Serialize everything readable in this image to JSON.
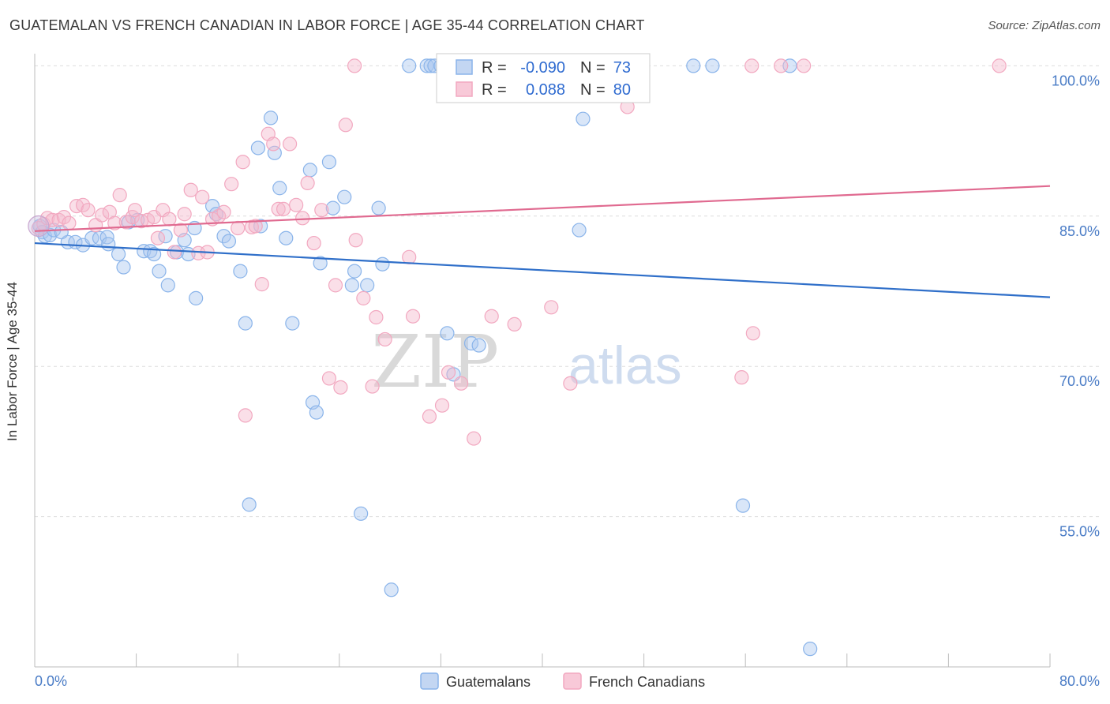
{
  "title": "GUATEMALAN VS FRENCH CANADIAN IN LABOR FORCE | AGE 35-44 CORRELATION CHART",
  "source": "Source: ZipAtlas.com",
  "watermark": {
    "part1": "ZIP",
    "part2": "atlas"
  },
  "chart_data": {
    "type": "scatter",
    "ylabel": "In Labor Force | Age 35-44",
    "xlim": [
      0,
      80
    ],
    "ylim": [
      40,
      102
    ],
    "x_ticks": [
      "0.0%",
      "80.0%"
    ],
    "y_ticks": [
      {
        "value": 100,
        "label": "100.0%"
      },
      {
        "value": 85,
        "label": "85.0%"
      },
      {
        "value": 70,
        "label": "70.0%"
      },
      {
        "value": 55,
        "label": "55.0%"
      }
    ],
    "legend": {
      "entries": [
        {
          "r_label": "R =",
          "r": "-0.090",
          "n_label": "N =",
          "n": "73"
        },
        {
          "r_label": "R =",
          "r": "0.088",
          "n_label": "N =",
          "n": "80"
        }
      ]
    },
    "series": [
      {
        "name": "Guatemalans",
        "color": "#8ab4ea",
        "line_color": "#2f6fc9",
        "trend": {
          "x": [
            0,
            80
          ],
          "y": [
            82.3,
            76.9
          ]
        },
        "points": [
          [
            0.4,
            84.0
          ],
          [
            0.6,
            83.4
          ],
          [
            0.8,
            83.0
          ],
          [
            1.2,
            83.1
          ],
          [
            1.5,
            83.6
          ],
          [
            2.6,
            82.4
          ],
          [
            3.2,
            82.4
          ],
          [
            3.8,
            82.1
          ],
          [
            4.5,
            82.8
          ],
          [
            5.1,
            82.8
          ],
          [
            5.7,
            82.9
          ],
          [
            5.8,
            82.2
          ],
          [
            6.6,
            81.2
          ],
          [
            7.0,
            79.9
          ],
          [
            7.4,
            84.4
          ],
          [
            8.1,
            84.6
          ],
          [
            8.6,
            81.5
          ],
          [
            9.1,
            81.5
          ],
          [
            9.4,
            81.2
          ],
          [
            9.8,
            79.5
          ],
          [
            10.3,
            83.0
          ],
          [
            10.5,
            78.1
          ],
          [
            11.2,
            81.4
          ],
          [
            11.8,
            82.6
          ],
          [
            12.1,
            81.2
          ],
          [
            12.6,
            83.8
          ],
          [
            12.7,
            76.8
          ],
          [
            14.0,
            86.0
          ],
          [
            14.3,
            85.2
          ],
          [
            14.9,
            83.0
          ],
          [
            15.3,
            82.5
          ],
          [
            16.2,
            79.5
          ],
          [
            16.6,
            74.3
          ],
          [
            16.9,
            56.2
          ],
          [
            17.6,
            91.8
          ],
          [
            17.8,
            84.0
          ],
          [
            18.6,
            94.8
          ],
          [
            18.9,
            91.3
          ],
          [
            19.3,
            87.8
          ],
          [
            19.8,
            82.8
          ],
          [
            20.3,
            74.3
          ],
          [
            21.7,
            89.6
          ],
          [
            21.9,
            66.4
          ],
          [
            22.2,
            65.4
          ],
          [
            22.5,
            80.3
          ],
          [
            23.2,
            90.4
          ],
          [
            23.5,
            85.8
          ],
          [
            24.4,
            86.9
          ],
          [
            25.0,
            78.1
          ],
          [
            25.2,
            79.5
          ],
          [
            25.7,
            55.3
          ],
          [
            26.2,
            78.1
          ],
          [
            27.1,
            85.8
          ],
          [
            27.4,
            80.2
          ],
          [
            28.1,
            47.7
          ],
          [
            30.9,
            100.0
          ],
          [
            31.2,
            100.0
          ],
          [
            31.5,
            100.0
          ],
          [
            32.0,
            100.0
          ],
          [
            32.5,
            73.3
          ],
          [
            33.0,
            69.2
          ],
          [
            34.4,
            72.3
          ],
          [
            35.0,
            72.1
          ],
          [
            42.9,
            83.6
          ],
          [
            43.2,
            94.7
          ],
          [
            51.9,
            100.0
          ],
          [
            55.8,
            56.1
          ],
          [
            59.5,
            100.0
          ],
          [
            61.1,
            41.8
          ],
          [
            53.4,
            100.0
          ],
          [
            33.8,
            100.0
          ],
          [
            29.5,
            100.0
          ],
          [
            2.1,
            83.4
          ]
        ]
      },
      {
        "name": "French Canadians",
        "color": "#f2a8c0",
        "line_color": "#e06a90",
        "trend": {
          "x": [
            0,
            80
          ],
          "y": [
            83.5,
            88.0
          ]
        },
        "points": [
          [
            0.3,
            83.8
          ],
          [
            0.7,
            84.2
          ],
          [
            1.0,
            84.8
          ],
          [
            1.4,
            84.6
          ],
          [
            1.9,
            84.6
          ],
          [
            2.3,
            84.9
          ],
          [
            2.7,
            84.3
          ],
          [
            3.3,
            86.0
          ],
          [
            3.8,
            86.1
          ],
          [
            4.2,
            85.6
          ],
          [
            4.8,
            84.1
          ],
          [
            5.3,
            85.1
          ],
          [
            5.9,
            85.4
          ],
          [
            6.3,
            84.3
          ],
          [
            6.7,
            87.1
          ],
          [
            7.2,
            84.4
          ],
          [
            7.7,
            84.9
          ],
          [
            7.9,
            85.6
          ],
          [
            8.4,
            84.5
          ],
          [
            8.9,
            84.6
          ],
          [
            9.4,
            84.9
          ],
          [
            9.7,
            82.8
          ],
          [
            10.1,
            85.6
          ],
          [
            10.6,
            84.7
          ],
          [
            11.0,
            81.4
          ],
          [
            11.5,
            83.6
          ],
          [
            11.8,
            85.2
          ],
          [
            12.3,
            87.6
          ],
          [
            12.9,
            81.3
          ],
          [
            13.2,
            86.9
          ],
          [
            13.6,
            81.4
          ],
          [
            14.0,
            84.7
          ],
          [
            14.5,
            85.0
          ],
          [
            14.9,
            85.4
          ],
          [
            15.5,
            88.2
          ],
          [
            16.0,
            83.8
          ],
          [
            16.4,
            90.4
          ],
          [
            17.1,
            83.9
          ],
          [
            17.4,
            84.0
          ],
          [
            17.9,
            78.2
          ],
          [
            18.4,
            93.2
          ],
          [
            18.8,
            92.2
          ],
          [
            19.2,
            85.7
          ],
          [
            19.6,
            85.7
          ],
          [
            20.1,
            92.2
          ],
          [
            20.6,
            86.1
          ],
          [
            21.1,
            84.8
          ],
          [
            21.5,
            88.3
          ],
          [
            22.0,
            82.3
          ],
          [
            22.6,
            85.6
          ],
          [
            23.2,
            68.8
          ],
          [
            23.7,
            78.1
          ],
          [
            24.1,
            67.9
          ],
          [
            24.5,
            94.1
          ],
          [
            25.3,
            82.6
          ],
          [
            25.9,
            76.8
          ],
          [
            26.6,
            68.0
          ],
          [
            26.9,
            74.9
          ],
          [
            27.6,
            72.7
          ],
          [
            29.5,
            80.9
          ],
          [
            29.8,
            75.0
          ],
          [
            31.1,
            65.0
          ],
          [
            32.1,
            66.1
          ],
          [
            32.6,
            69.4
          ],
          [
            33.6,
            68.3
          ],
          [
            34.6,
            62.8
          ],
          [
            36.0,
            75.0
          ],
          [
            37.8,
            74.2
          ],
          [
            40.7,
            75.9
          ],
          [
            42.2,
            68.3
          ],
          [
            56.6,
            73.3
          ],
          [
            55.7,
            68.9
          ],
          [
            46.7,
            95.9
          ],
          [
            56.5,
            100.0
          ],
          [
            58.8,
            100.0
          ],
          [
            60.6,
            100.0
          ],
          [
            76.0,
            100.0
          ],
          [
            40.5,
            100.0
          ],
          [
            25.2,
            100.0
          ],
          [
            16.6,
            65.1
          ]
        ]
      }
    ]
  }
}
